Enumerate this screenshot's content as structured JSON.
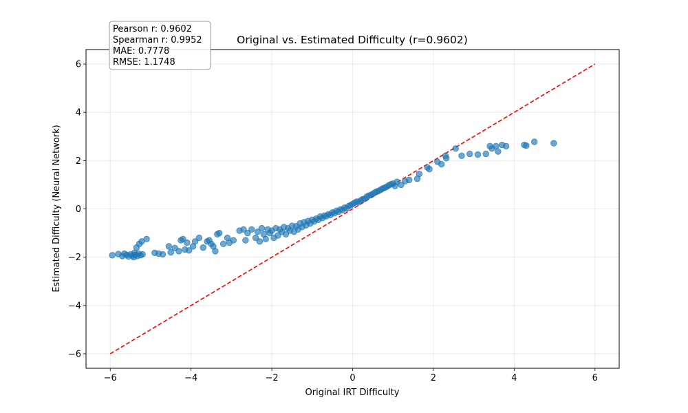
{
  "chart_data": {
    "type": "scatter",
    "title": "Original vs. Estimated Difficulty (r=0.9602)",
    "xlabel": "Original IRT Difficulty",
    "ylabel": "Estimated Difficulty (Neural Network)",
    "xlim": [
      -6.6,
      6.6
    ],
    "ylim": [
      -6.6,
      6.6
    ],
    "xticks": [
      -6,
      -4,
      -2,
      0,
      2,
      4,
      6
    ],
    "yticks": [
      -6,
      -4,
      -2,
      0,
      2,
      4,
      6
    ],
    "grid": true,
    "point_color": "#1f77b4",
    "reference_line": {
      "x": [
        -6,
        6
      ],
      "y": [
        -6,
        6
      ],
      "color": "#ff0000",
      "style": "dashed"
    },
    "stats_box": {
      "lines": [
        "Pearson r: 0.9602",
        "Spearman r: 0.9952",
        "MAE: 0.7778",
        "RMSE: 1.1748"
      ],
      "placement": "top-left"
    },
    "series": [
      {
        "points": [
          [
            -5.95,
            -1.92
          ],
          [
            -5.8,
            -1.87
          ],
          [
            -5.7,
            -1.95
          ],
          [
            -5.65,
            -1.85
          ],
          [
            -5.6,
            -1.9
          ],
          [
            -5.55,
            -1.97
          ],
          [
            -5.5,
            -1.88
          ],
          [
            -5.45,
            -1.93
          ],
          [
            -5.42,
            -2.0
          ],
          [
            -5.4,
            -1.82
          ],
          [
            -5.38,
            -1.9
          ],
          [
            -5.35,
            -1.6
          ],
          [
            -5.33,
            -1.95
          ],
          [
            -5.3,
            -1.85
          ],
          [
            -5.28,
            -1.45
          ],
          [
            -5.25,
            -1.92
          ],
          [
            -5.22,
            -1.35
          ],
          [
            -5.2,
            -1.88
          ],
          [
            -5.1,
            -1.25
          ],
          [
            -4.9,
            -1.82
          ],
          [
            -4.8,
            -1.85
          ],
          [
            -4.7,
            -1.88
          ],
          [
            -4.55,
            -1.55
          ],
          [
            -4.5,
            -1.8
          ],
          [
            -4.4,
            -1.62
          ],
          [
            -4.3,
            -1.75
          ],
          [
            -4.25,
            -1.3
          ],
          [
            -4.2,
            -1.25
          ],
          [
            -4.15,
            -1.68
          ],
          [
            -4.1,
            -1.4
          ],
          [
            -4.05,
            -1.72
          ],
          [
            -3.95,
            -1.55
          ],
          [
            -3.9,
            -1.35
          ],
          [
            -3.8,
            -1.2
          ],
          [
            -3.7,
            -1.6
          ],
          [
            -3.6,
            -1.35
          ],
          [
            -3.55,
            -1.3
          ],
          [
            -3.5,
            -1.45
          ],
          [
            -3.45,
            -1.55
          ],
          [
            -3.4,
            -1.75
          ],
          [
            -3.35,
            -1.05
          ],
          [
            -3.3,
            -1.0
          ],
          [
            -3.2,
            -1.45
          ],
          [
            -3.1,
            -1.2
          ],
          [
            -3.05,
            -1.4
          ],
          [
            -2.95,
            -1.3
          ],
          [
            -2.8,
            -0.9
          ],
          [
            -2.7,
            -0.85
          ],
          [
            -2.65,
            -1.3
          ],
          [
            -2.6,
            -1.0
          ],
          [
            -2.5,
            -0.85
          ],
          [
            -2.4,
            -1.2
          ],
          [
            -2.35,
            -0.95
          ],
          [
            -2.3,
            -1.35
          ],
          [
            -2.25,
            -0.8
          ],
          [
            -2.2,
            -1.05
          ],
          [
            -2.15,
            -1.25
          ],
          [
            -2.1,
            -0.85
          ],
          [
            -2.05,
            -1.0
          ],
          [
            -2.0,
            -0.9
          ],
          [
            -1.95,
            -1.2
          ],
          [
            -1.9,
            -0.8
          ],
          [
            -1.85,
            -1.1
          ],
          [
            -1.8,
            -0.85
          ],
          [
            -1.75,
            -0.95
          ],
          [
            -1.7,
            -0.75
          ],
          [
            -1.65,
            -1.05
          ],
          [
            -1.6,
            -0.8
          ],
          [
            -1.55,
            -0.9
          ],
          [
            -1.5,
            -0.7
          ],
          [
            -1.45,
            -0.95
          ],
          [
            -1.4,
            -0.72
          ],
          [
            -1.35,
            -0.85
          ],
          [
            -1.3,
            -0.6
          ],
          [
            -1.25,
            -0.75
          ],
          [
            -1.2,
            -0.55
          ],
          [
            -1.15,
            -0.68
          ],
          [
            -1.1,
            -0.5
          ],
          [
            -1.05,
            -0.6
          ],
          [
            -1.0,
            -0.45
          ],
          [
            -0.95,
            -0.52
          ],
          [
            -0.9,
            -0.4
          ],
          [
            -0.85,
            -0.45
          ],
          [
            -0.8,
            -0.32
          ],
          [
            -0.75,
            -0.38
          ],
          [
            -0.7,
            -0.28
          ],
          [
            -0.65,
            -0.3
          ],
          [
            -0.6,
            -0.22
          ],
          [
            -0.55,
            -0.25
          ],
          [
            -0.5,
            -0.15
          ],
          [
            -0.45,
            -0.18
          ],
          [
            -0.4,
            -0.08
          ],
          [
            -0.35,
            -0.12
          ],
          [
            -0.3,
            -0.02
          ],
          [
            -0.25,
            -0.05
          ],
          [
            -0.2,
            0.05
          ],
          [
            -0.15,
            0.02
          ],
          [
            -0.1,
            0.12
          ],
          [
            -0.05,
            0.15
          ],
          [
            0.0,
            0.2
          ],
          [
            0.05,
            0.25
          ],
          [
            0.1,
            0.3
          ],
          [
            0.15,
            0.28
          ],
          [
            0.2,
            0.35
          ],
          [
            0.25,
            0.4
          ],
          [
            0.3,
            0.42
          ],
          [
            0.35,
            0.5
          ],
          [
            0.4,
            0.55
          ],
          [
            0.45,
            0.58
          ],
          [
            0.5,
            0.62
          ],
          [
            0.55,
            0.68
          ],
          [
            0.6,
            0.72
          ],
          [
            0.65,
            0.75
          ],
          [
            0.7,
            0.8
          ],
          [
            0.75,
            0.85
          ],
          [
            0.8,
            0.88
          ],
          [
            0.85,
            0.92
          ],
          [
            0.9,
            0.98
          ],
          [
            0.95,
            1.02
          ],
          [
            1.0,
            1.05
          ],
          [
            1.05,
            0.95
          ],
          [
            1.1,
            1.12
          ],
          [
            1.2,
            1.0
          ],
          [
            1.3,
            1.15
          ],
          [
            1.4,
            1.2
          ],
          [
            1.6,
            1.25
          ],
          [
            1.65,
            1.45
          ],
          [
            1.85,
            1.72
          ],
          [
            1.9,
            1.65
          ],
          [
            2.1,
            1.95
          ],
          [
            2.2,
            1.85
          ],
          [
            2.3,
            2.2
          ],
          [
            2.32,
            2.1
          ],
          [
            2.55,
            2.5
          ],
          [
            2.7,
            2.2
          ],
          [
            2.9,
            2.28
          ],
          [
            3.1,
            2.25
          ],
          [
            3.3,
            2.28
          ],
          [
            3.4,
            2.6
          ],
          [
            3.45,
            2.5
          ],
          [
            3.55,
            2.6
          ],
          [
            3.6,
            2.38
          ],
          [
            3.7,
            2.65
          ],
          [
            3.8,
            2.6
          ],
          [
            4.25,
            2.65
          ],
          [
            4.3,
            2.62
          ],
          [
            4.5,
            2.78
          ],
          [
            4.98,
            2.72
          ]
        ]
      }
    ]
  }
}
